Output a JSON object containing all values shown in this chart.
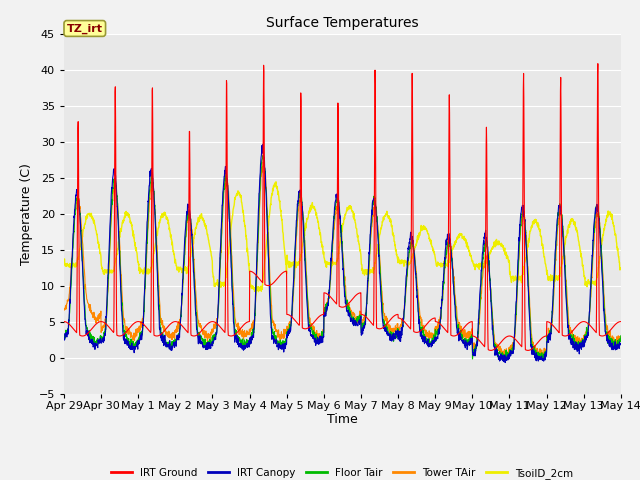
{
  "title": "Surface Temperatures",
  "xlabel": "Time",
  "ylabel": "Temperature (C)",
  "ylim": [
    -5,
    45
  ],
  "tick_labels": [
    "Apr 29",
    "Apr 30",
    "May 1",
    "May 2",
    "May 3",
    "May 4",
    "May 5",
    "May 6",
    "May 7",
    "May 8",
    "May 9",
    "May 10",
    "May 11",
    "May 12",
    "May 13",
    "May 14"
  ],
  "annotation_text": "TZ_irt",
  "annotation_box_color": "#FFFF99",
  "annotation_text_color": "#880000",
  "annotation_border_color": "#999933",
  "series_colors": {
    "IRT Ground": "#FF0000",
    "IRT Canopy": "#0000BB",
    "Floor Tair": "#00BB00",
    "Tower TAir": "#FF8800",
    "TsoilD_2cm": "#EEEE00"
  },
  "bg_color": "#E8E8E8",
  "grid_color": "#FFFFFF",
  "fig_bg_color": "#F2F2F2",
  "num_days": 15,
  "yticks": [
    -5,
    0,
    5,
    10,
    15,
    20,
    25,
    30,
    35,
    40,
    45
  ],
  "legend_labels": [
    "IRT Ground",
    "IRT Canopy",
    "Floor Tair",
    "Tower TAir",
    "TsoilD_2cm"
  ]
}
